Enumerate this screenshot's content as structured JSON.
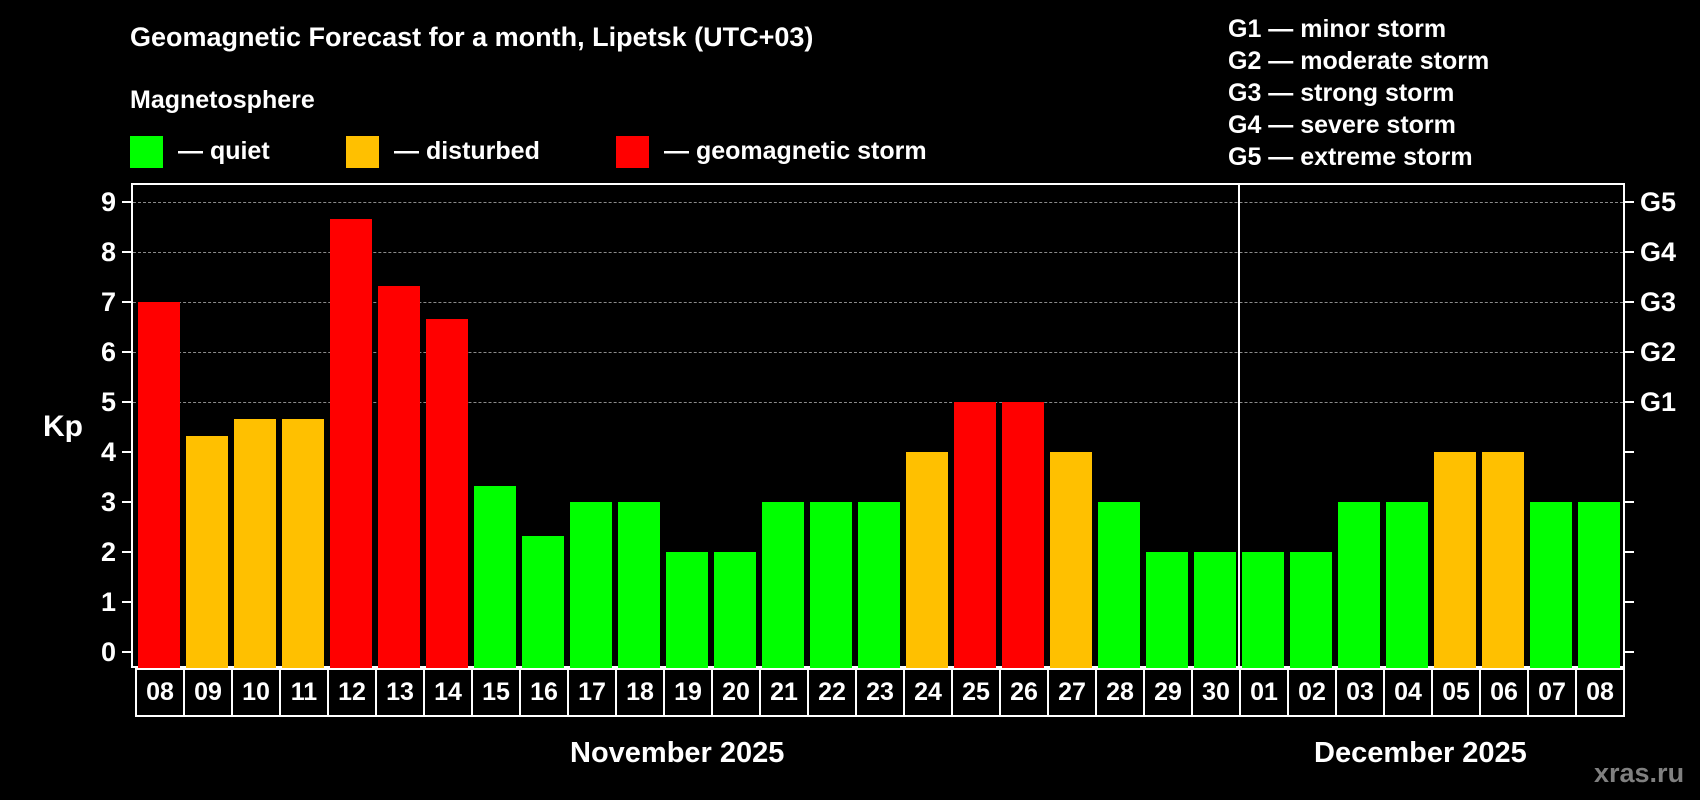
{
  "title": "Geomagnetic Forecast for a month, Lipetsk (UTC+03)",
  "subtitle": "Magnetosphere",
  "legend": [
    {
      "label": "— quiet",
      "color": "#00ff00"
    },
    {
      "label": "— disturbed",
      "color": "#ffc000"
    },
    {
      "label": "— geomagnetic storm",
      "color": "#ff0000"
    }
  ],
  "g_scale": [
    "G1 — minor storm",
    "G2 — moderate storm",
    "G3 — strong storm",
    "G4 — severe storm",
    "G5 — extreme storm"
  ],
  "y_axis_label": "Kp",
  "months": [
    "November 2025",
    "December 2025"
  ],
  "watermark": "xras.ru",
  "colors": {
    "quiet": "#00ff00",
    "disturbed": "#ffc000",
    "storm": "#ff0000",
    "grid": "#8a8a8a"
  },
  "chart_data": {
    "type": "bar",
    "title": "Geomagnetic Forecast for a month, Lipetsk (UTC+03)",
    "xlabel": "",
    "ylabel": "Kp",
    "ylim": [
      0,
      9
    ],
    "yticks": [
      0,
      1,
      2,
      3,
      4,
      5,
      6,
      7,
      8,
      9
    ],
    "right_ticks": [
      {
        "value": 5,
        "label": "G1"
      },
      {
        "value": 6,
        "label": "G2"
      },
      {
        "value": 7,
        "label": "G3"
      },
      {
        "value": 8,
        "label": "G4"
      },
      {
        "value": 9,
        "label": "G5"
      }
    ],
    "grid": "dashed horizontal at 5,6,7,8,9",
    "categories": [
      "08",
      "09",
      "10",
      "11",
      "12",
      "13",
      "14",
      "15",
      "16",
      "17",
      "18",
      "19",
      "20",
      "21",
      "22",
      "23",
      "24",
      "25",
      "26",
      "27",
      "28",
      "29",
      "30",
      "01",
      "02",
      "03",
      "04",
      "05",
      "06",
      "07",
      "08"
    ],
    "month_groups": [
      {
        "label": "November 2025",
        "start": 0,
        "end": 22
      },
      {
        "label": "December 2025",
        "start": 23,
        "end": 30
      }
    ],
    "values": [
      7,
      4.33,
      4.67,
      4.67,
      8.67,
      7.33,
      6.67,
      3.33,
      2.33,
      3,
      3,
      2,
      2,
      3,
      3,
      3,
      4,
      5,
      5,
      4,
      3,
      2,
      2,
      2,
      2,
      3,
      3,
      4,
      4,
      3,
      3
    ],
    "status": [
      "storm",
      "disturbed",
      "disturbed",
      "disturbed",
      "storm",
      "storm",
      "storm",
      "quiet",
      "quiet",
      "quiet",
      "quiet",
      "quiet",
      "quiet",
      "quiet",
      "quiet",
      "quiet",
      "disturbed",
      "storm",
      "storm",
      "disturbed",
      "quiet",
      "quiet",
      "quiet",
      "quiet",
      "quiet",
      "quiet",
      "quiet",
      "disturbed",
      "disturbed",
      "quiet",
      "quiet"
    ],
    "legend": [
      "quiet",
      "disturbed",
      "geomagnetic storm"
    ]
  }
}
